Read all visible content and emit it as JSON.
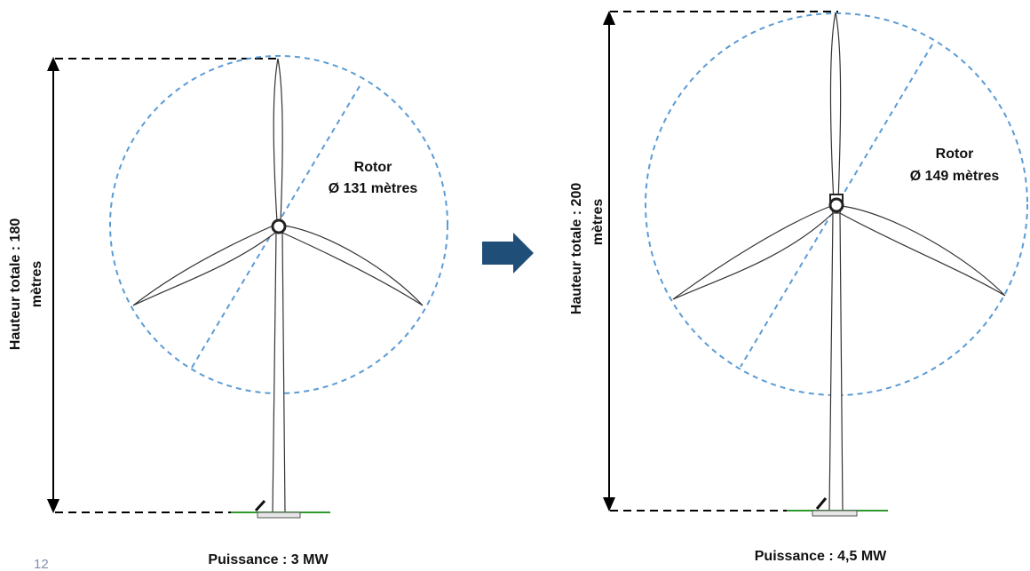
{
  "page_number": "12",
  "colors": {
    "rotor_circle": "#5b9bd5",
    "arrow": "#1f4e79",
    "ground": "#2e9a2e",
    "line": "#000000"
  },
  "turbine_before": {
    "height_label_line1": "Hauteur totale  : 180",
    "height_label_line2": "mètres",
    "rotor_label": "Rotor",
    "rotor_diameter": "Ø 131 mètres",
    "power_label": "Puissance : 3 MW"
  },
  "turbine_after": {
    "height_label_line1": "Hauteur totale  : 200",
    "height_label_line2": "mètres",
    "rotor_label": "Rotor",
    "rotor_diameter": "Ø 149 mètres",
    "power_label": "Puissance : 4,5 MW"
  },
  "transition_icon": "right-arrow-icon"
}
